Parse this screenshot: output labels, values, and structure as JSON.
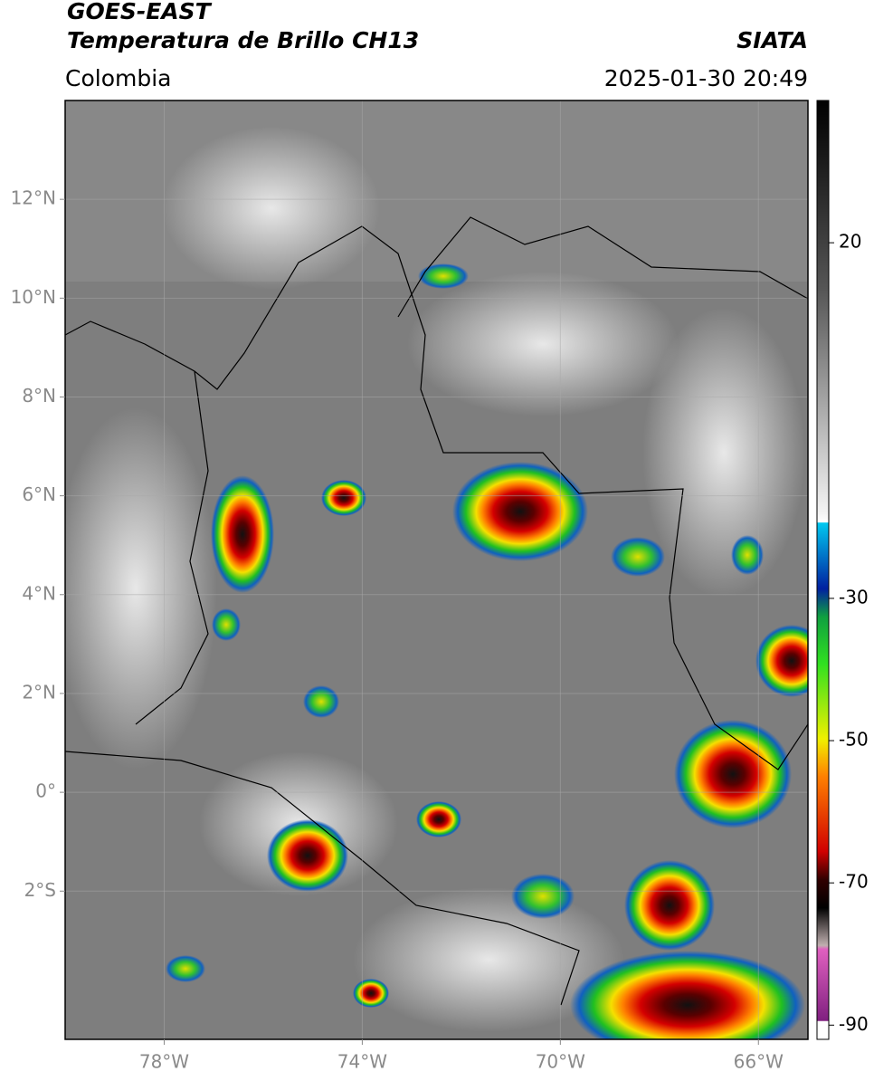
{
  "header": {
    "title": "GOES-EAST",
    "subtitle": "Temperatura de Brillo CH13",
    "region": "Colombia",
    "source": "SIATA",
    "datetime": "2025-01-30 20:49"
  },
  "map": {
    "lonlim": [
      -80,
      -65
    ],
    "latlim": [
      -5,
      14
    ],
    "lonticks": [
      {
        "value": -78,
        "label": "78°W"
      },
      {
        "value": -74,
        "label": "74°W"
      },
      {
        "value": -70,
        "label": "70°W"
      },
      {
        "value": -66,
        "label": "66°W"
      }
    ],
    "latticks": [
      {
        "value": 12,
        "label": "12°N"
      },
      {
        "value": 10,
        "label": "10°N"
      },
      {
        "value": 8,
        "label": "8°N"
      },
      {
        "value": 6,
        "label": "6°N"
      },
      {
        "value": 4,
        "label": "4°N"
      },
      {
        "value": 2,
        "label": "2°N"
      },
      {
        "value": 0,
        "label": "0°"
      },
      {
        "value": -2,
        "label": "2°S"
      }
    ]
  },
  "colorbar": {
    "lim": [
      -92,
      40
    ],
    "ticks": [
      20,
      -30,
      -50,
      -70,
      -90
    ]
  }
}
